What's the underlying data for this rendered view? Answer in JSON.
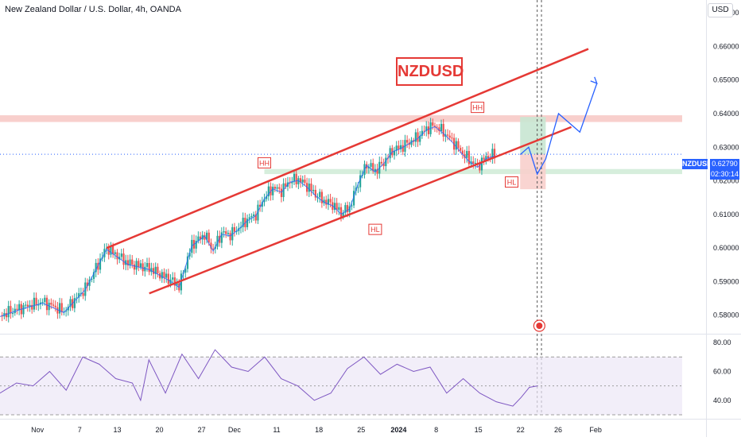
{
  "chart_data": [
    {
      "type": "line",
      "title": "New Zealand Dollar / U.S. Dollar, 4h, OANDA",
      "symbol": "NZDUSD",
      "currency": "USD",
      "y_axis_ticks": [
        "0.67000",
        "0.66000",
        "0.65000",
        "0.64000",
        "0.63000",
        "0.62000",
        "0.61000",
        "0.60000",
        "0.59000",
        "0.58000"
      ],
      "ylim": [
        0.5745,
        0.6738
      ],
      "x_axis_labels": [
        "Nov",
        "7",
        "13",
        "20",
        "27",
        "Dec",
        "11",
        "18",
        "25",
        "2024",
        "8",
        "15",
        "22",
        "26",
        "Feb"
      ],
      "price_series_x": [
        0,
        5,
        10,
        15,
        20,
        25,
        30,
        35,
        40,
        42,
        45,
        48,
        50,
        52,
        54,
        56,
        58,
        60,
        62,
        64,
        66,
        68,
        70,
        72,
        74,
        76,
        78,
        80,
        82,
        84,
        86,
        88,
        90,
        92,
        94,
        96,
        98,
        100,
        102,
        104,
        106,
        108,
        110,
        112,
        114,
        116,
        118,
        120,
        122,
        124,
        126,
        128
      ],
      "price_series": [
        0.58,
        0.5822,
        0.584,
        0.5812,
        0.588,
        0.6,
        0.5955,
        0.594,
        0.5905,
        0.5887,
        0.601,
        0.604,
        0.5995,
        0.6045,
        0.604,
        0.606,
        0.6085,
        0.61,
        0.615,
        0.618,
        0.617,
        0.62,
        0.6205,
        0.6185,
        0.616,
        0.614,
        0.613,
        0.6105,
        0.612,
        0.6195,
        0.625,
        0.623,
        0.6255,
        0.629,
        0.63,
        0.6315,
        0.633,
        0.6355,
        0.6365,
        0.6345,
        0.632,
        0.629,
        0.6262,
        0.6244,
        0.627,
        0.6278,
        null,
        null,
        null,
        null,
        null,
        null
      ],
      "rsi_ticks": [
        "80.00",
        "60.00",
        "40.00"
      ],
      "rsi_ylim": [
        30,
        85
      ],
      "rsi_band": [
        30,
        70
      ],
      "rsi_x": [
        0,
        4,
        8,
        12,
        16,
        20,
        24,
        28,
        32,
        34,
        36,
        40,
        44,
        48,
        52,
        56,
        60,
        64,
        68,
        72,
        76,
        80,
        84,
        88,
        92,
        96,
        100,
        104,
        108,
        112,
        116,
        120,
        124,
        126,
        128,
        130
      ],
      "rsi_series": [
        45,
        52,
        50,
        60,
        47,
        70,
        65,
        55,
        52,
        40,
        68,
        45,
        72,
        55,
        75,
        63,
        60,
        70,
        55,
        50,
        40,
        45,
        62,
        70,
        58,
        65,
        60,
        63,
        45,
        55,
        45,
        39,
        36,
        42,
        49,
        50
      ],
      "channel_upper": {
        "x": [
          25,
          128
        ],
        "y": [
          0.6,
          0.654
        ]
      },
      "channel_lower": {
        "x": [
          35,
          128
        ],
        "y": [
          0.5865,
          0.633
        ]
      },
      "annotations": [
        {
          "label": "HH",
          "x": 62,
          "y": 0.625
        },
        {
          "label": "HL",
          "x": 88,
          "y": 0.6052
        },
        {
          "label": "HH",
          "x": 112,
          "y": 0.6415
        },
        {
          "label": "HL",
          "x": 120,
          "y": 0.6193
        }
      ],
      "projection_path": {
        "x": [
          122,
          124,
          126,
          128,
          131,
          136,
          140
        ],
        "y": [
          0.6278,
          0.63,
          0.622,
          0.6265,
          0.64,
          0.6345,
          0.649
        ]
      },
      "resistance_zone": [
        0.6375,
        0.6395
      ],
      "support_zone": [
        0.622,
        0.6235
      ],
      "current_price": "0.62790",
      "countdown": "02:30:14",
      "colors": {
        "candle_up": "#26a69a",
        "candle_down": "#ef5350",
        "channel": "#e53935",
        "arrow": "#2962ff",
        "rsi": "#7e57c2",
        "resistance": "#f8cfcc",
        "support": "#d6eedc"
      }
    }
  ]
}
